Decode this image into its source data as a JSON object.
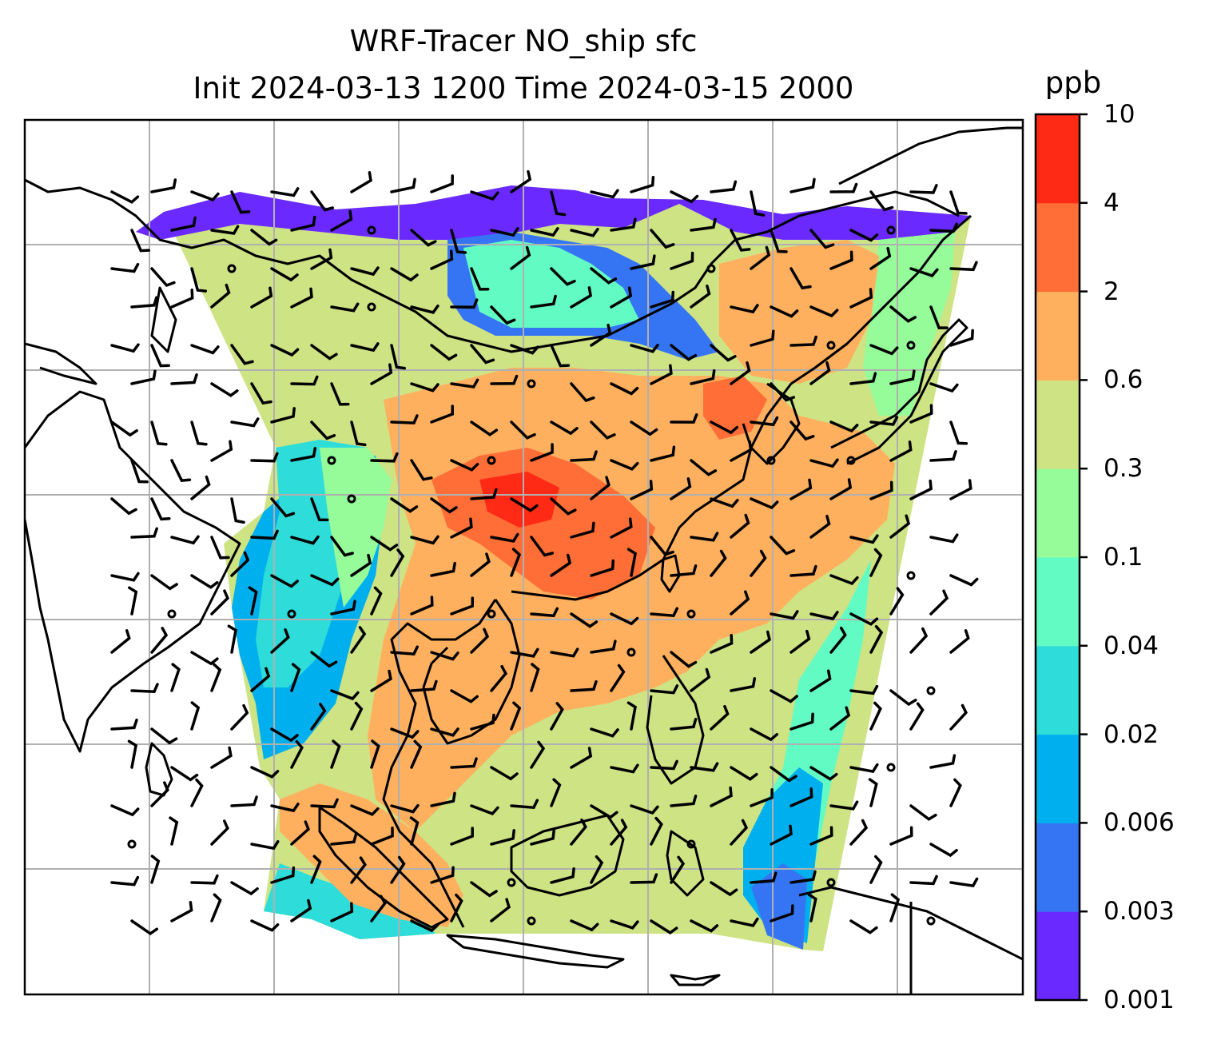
{
  "title": {
    "line1": "WRF-Tracer NO_ship sfc",
    "line2": "Init 2024-03-13 1200 Time 2024-03-15 2000"
  },
  "colorbar": {
    "unit": "ppb",
    "levels": [
      "0.001",
      "0.003",
      "0.006",
      "0.02",
      "0.04",
      "0.1",
      "0.3",
      "0.6",
      "2",
      "4",
      "10"
    ],
    "colors": [
      "#6a2aff",
      "#3575f3",
      "#00b0ee",
      "#2edcd9",
      "#63fbc4",
      "#96fc9a",
      "#cde384",
      "#ffb05f",
      "#ff6e37",
      "#ff2a15"
    ]
  },
  "map": {
    "field": "NO_ship surface concentration",
    "overlay": "wind barbs",
    "gridlines": true,
    "coastlines": true
  }
}
